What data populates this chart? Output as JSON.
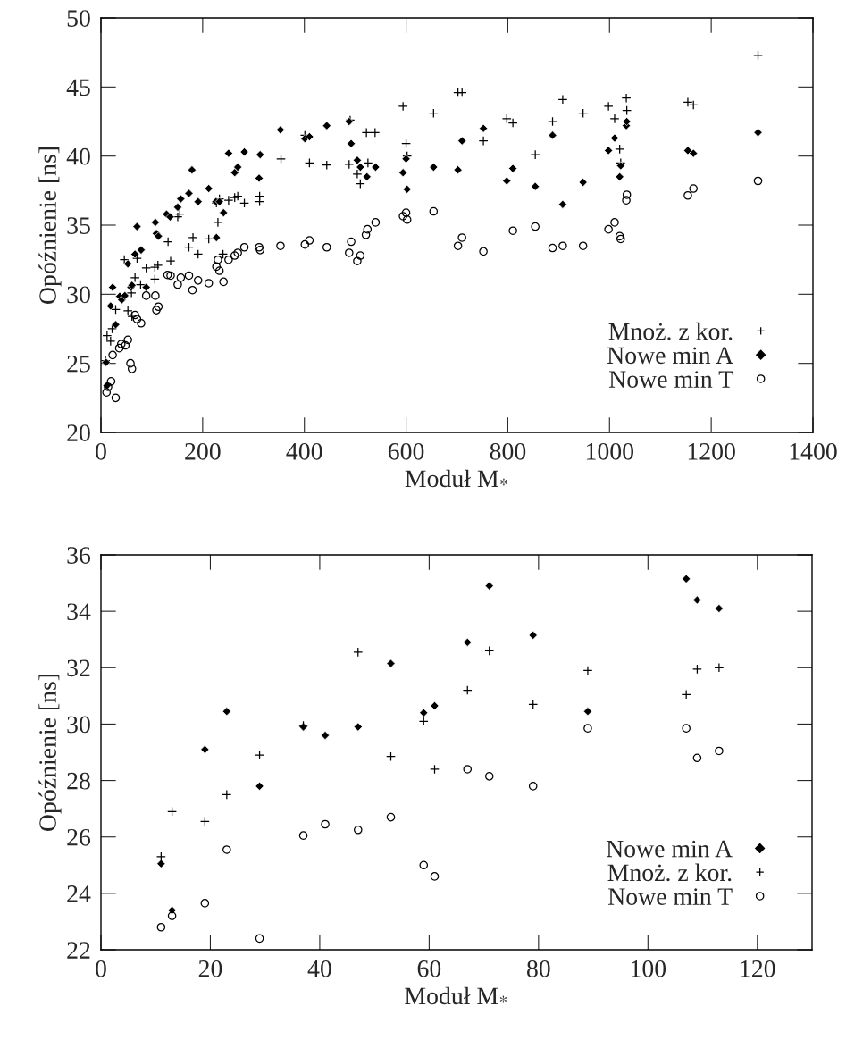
{
  "chart_data": [
    {
      "type": "scatter",
      "xlabel": "Moduł M$_{*}$",
      "ylabel": "Opóźnienie [ns]",
      "xlim": [
        0,
        1400
      ],
      "ylim": [
        20,
        50
      ],
      "xticks": [
        0,
        200,
        400,
        600,
        800,
        1000,
        1200,
        1400
      ],
      "yticks": [
        20,
        25,
        30,
        35,
        40,
        45,
        50
      ],
      "grid": false,
      "legend": "bottom right",
      "series": [
        {
          "name": "Mnoż. z kor.",
          "color": "#000000",
          "marker": "cross",
          "x": [
            9,
            12,
            19,
            22,
            29,
            46,
            67,
            71,
            53,
            60,
            61,
            78,
            89,
            106,
            112,
            106,
            132,
            137,
            151,
            155,
            173,
            181,
            191,
            212,
            227,
            230,
            233,
            240,
            251,
            263,
            269,
            282,
            312,
            312,
            354,
            401,
            410,
            444,
            488,
            490,
            504,
            510,
            525,
            522,
            539,
            594,
            600,
            602,
            654,
            702,
            710,
            752,
            798,
            810,
            854,
            888,
            908,
            948,
            998,
            1010,
            1020,
            1022,
            1033,
            1034,
            1154,
            1165,
            1292
          ],
          "values": [
            25.2,
            27.0,
            26.6,
            27.5,
            28.9,
            32.5,
            31.2,
            32.6,
            28.8,
            30.1,
            28.4,
            30.7,
            31.9,
            31.95,
            32.1,
            31.1,
            33.8,
            32.4,
            35.6,
            35.8,
            33.4,
            34.1,
            32.9,
            34.0,
            36.6,
            35.2,
            36.9,
            32.9,
            36.8,
            37.0,
            37.1,
            36.6,
            37.1,
            36.7,
            39.8,
            41.5,
            39.5,
            39.35,
            39.4,
            42.6,
            38.7,
            38.0,
            39.5,
            41.7,
            41.7,
            43.6,
            40.9,
            40.0,
            43.1,
            44.6,
            44.6,
            41.1,
            42.7,
            42.4,
            40.1,
            42.5,
            44.1,
            43.1,
            43.6,
            42.7,
            40.5,
            39.5,
            44.2,
            43.3,
            43.9,
            43.7,
            47.3
          ]
        },
        {
          "name": "Nowe min A",
          "color": "#000000",
          "marker": "diamond",
          "x": [
            10,
            12,
            23,
            19,
            29,
            37,
            41,
            47,
            53,
            59,
            61,
            67,
            71,
            79,
            89,
            107,
            109,
            113,
            129,
            136,
            151,
            157,
            173,
            179,
            191,
            212,
            227,
            226,
            233,
            241,
            251,
            263,
            269,
            282,
            311,
            313,
            353,
            401,
            410,
            444,
            488,
            492,
            504,
            510,
            523,
            540,
            594,
            600,
            602,
            654,
            702,
            710,
            752,
            798,
            810,
            854,
            888,
            908,
            948,
            998,
            1010,
            1020,
            1022,
            1033,
            1034,
            1154,
            1165,
            1292
          ],
          "values": [
            25.07,
            23.4,
            30.5,
            29.15,
            27.8,
            29.85,
            29.6,
            29.9,
            32.2,
            30.5,
            30.65,
            32.9,
            34.9,
            33.2,
            30.5,
            35.2,
            34.4,
            34.2,
            35.8,
            35.6,
            36.3,
            36.9,
            37.3,
            39.0,
            36.7,
            37.65,
            34.1,
            36.7,
            36.7,
            35.9,
            40.2,
            38.8,
            39.2,
            40.3,
            38.4,
            40.1,
            41.9,
            41.26,
            41.4,
            42.2,
            42.5,
            40.9,
            39.7,
            39.2,
            38.5,
            39.2,
            38.8,
            39.8,
            37.6,
            39.2,
            39.0,
            41.1,
            42.0,
            38.2,
            39.1,
            37.8,
            41.5,
            36.5,
            38.1,
            40.4,
            41.3,
            38.5,
            39.3,
            42.2,
            42.5,
            40.4,
            40.2,
            41.7
          ]
        },
        {
          "name": "Nowe min T",
          "color": "#000000",
          "marker": "circle",
          "x": [
            11,
            14,
            20,
            29,
            23,
            36,
            40,
            48,
            53,
            58,
            61,
            67,
            71,
            79,
            89,
            107,
            109,
            113,
            131,
            137,
            151,
            157,
            173,
            180,
            191,
            212,
            227,
            230,
            233,
            241,
            251,
            263,
            269,
            282,
            311,
            313,
            353,
            401,
            410,
            444,
            488,
            492,
            504,
            510,
            521,
            524,
            540,
            594,
            600,
            602,
            654,
            702,
            710,
            752,
            810,
            854,
            888,
            908,
            948,
            998,
            1010,
            1020,
            1022,
            1033,
            1034,
            1154,
            1165,
            1292
          ],
          "values": [
            22.9,
            23.3,
            23.7,
            22.5,
            25.6,
            26.1,
            26.4,
            26.3,
            26.7,
            25.0,
            24.6,
            28.5,
            28.2,
            27.9,
            29.9,
            29.9,
            28.85,
            29.1,
            31.4,
            31.35,
            30.7,
            31.2,
            31.35,
            30.3,
            31.0,
            30.8,
            32.0,
            32.5,
            31.7,
            30.9,
            32.5,
            32.8,
            33.0,
            33.4,
            33.4,
            33.2,
            33.5,
            33.6,
            33.9,
            33.4,
            33.0,
            33.8,
            32.4,
            32.8,
            34.3,
            34.7,
            35.2,
            35.65,
            35.9,
            35.4,
            36.0,
            33.5,
            34.1,
            33.1,
            34.6,
            34.9,
            33.35,
            33.5,
            33.5,
            34.7,
            35.2,
            34.2,
            34.0,
            36.8,
            37.2,
            37.15,
            37.65,
            38.2
          ]
        }
      ]
    },
    {
      "type": "scatter",
      "xlabel": "Moduł M$_{*}$",
      "ylabel": "Opóźnienie [ns]",
      "xlim": [
        0,
        130
      ],
      "ylim": [
        22,
        36
      ],
      "xticks": [
        0,
        20,
        40,
        60,
        80,
        100,
        120
      ],
      "yticks": [
        22,
        24,
        26,
        28,
        30,
        32,
        34,
        36
      ],
      "grid": false,
      "legend": "bottom right",
      "series": [
        {
          "name": "Nowe min A",
          "color": "#000000",
          "marker": "diamond",
          "x": [
            11,
            13,
            19,
            23,
            29,
            37,
            41,
            47,
            53,
            59,
            61,
            67,
            71,
            79,
            89,
            107,
            109,
            113
          ],
          "values": [
            25.05,
            23.4,
            29.1,
            30.45,
            27.8,
            29.9,
            29.6,
            29.9,
            32.15,
            30.4,
            30.65,
            32.9,
            34.9,
            33.15,
            30.45,
            35.15,
            34.4,
            34.1
          ]
        },
        {
          "name": "Mnoż. z kor.",
          "color": "#000000",
          "marker": "cross",
          "x": [
            11,
            13,
            19,
            23,
            29,
            37,
            47,
            53,
            59,
            61,
            67,
            71,
            79,
            89,
            107,
            109,
            113
          ],
          "values": [
            25.3,
            26.9,
            26.55,
            27.5,
            28.9,
            29.95,
            32.55,
            28.85,
            30.1,
            28.4,
            31.2,
            32.6,
            30.7,
            31.9,
            31.05,
            31.95,
            32.0
          ]
        },
        {
          "name": "Nowe min T",
          "color": "#000000",
          "marker": "circle",
          "x": [
            11,
            13,
            19,
            23,
            29,
            37,
            41,
            47,
            53,
            59,
            61,
            67,
            71,
            79,
            89,
            107,
            109,
            113
          ],
          "values": [
            22.8,
            23.2,
            23.65,
            25.55,
            22.4,
            26.05,
            26.45,
            26.25,
            26.7,
            25.0,
            24.6,
            28.4,
            28.15,
            27.8,
            29.85,
            29.85,
            28.8,
            29.05
          ]
        }
      ]
    }
  ]
}
